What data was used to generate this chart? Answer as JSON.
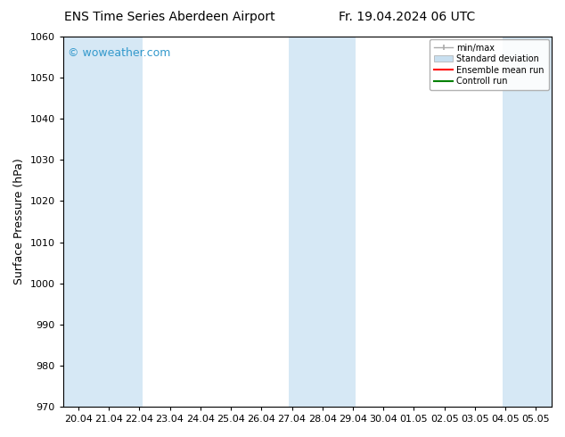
{
  "title_left": "ENS Time Series Aberdeen Airport",
  "title_right": "Fr. 19.04.2024 06 UTC",
  "ylabel": "Surface Pressure (hPa)",
  "ylim": [
    970,
    1060
  ],
  "yticks": [
    970,
    980,
    990,
    1000,
    1010,
    1020,
    1030,
    1040,
    1050,
    1060
  ],
  "x_tick_labels": [
    "20.04",
    "21.04",
    "22.04",
    "23.04",
    "24.04",
    "25.04",
    "26.04",
    "27.04",
    "28.04",
    "29.04",
    "30.04",
    "01.05",
    "02.05",
    "03.05",
    "04.05",
    "05.05"
  ],
  "background_color": "#ffffff",
  "plot_bg_color": "#ffffff",
  "shade_color": "#d6e8f5",
  "shaded_ranges": [
    [
      -0.5,
      2.1
    ],
    [
      6.9,
      9.1
    ],
    [
      13.9,
      15.5
    ]
  ],
  "watermark_text": "© woweather.com",
  "watermark_color": "#3399cc",
  "legend_labels": [
    "min/max",
    "Standard deviation",
    "Ensemble mean run",
    "Controll run"
  ],
  "legend_colors": [
    "#aaaaaa",
    "#c8dff0",
    "#ff0000",
    "#008000"
  ],
  "spine_color": "#000000",
  "title_fontsize": 10,
  "axis_label_fontsize": 9,
  "tick_fontsize": 8,
  "watermark_fontsize": 9,
  "legend_fontsize": 7
}
